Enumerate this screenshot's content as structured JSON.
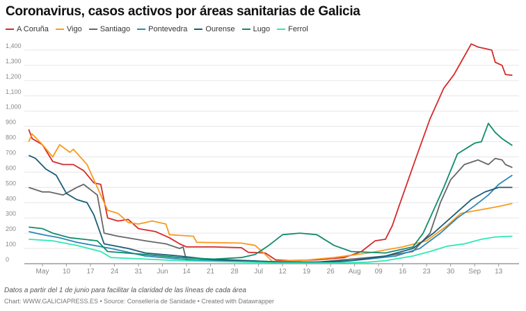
{
  "chart_data": {
    "type": "line",
    "title": "Coronavirus, casos activos por áreas sanitarias de Galicia",
    "xlabel": "",
    "ylabel": "",
    "x_unit": "days since May 3",
    "ylim": [
      0,
      1400
    ],
    "yticks": [
      0,
      100,
      200,
      300,
      400,
      500,
      600,
      700,
      800,
      900,
      1000,
      1100,
      1200,
      1300,
      1400
    ],
    "ytick_labels": [
      "0",
      "100",
      "200",
      "300",
      "400",
      "500",
      "600",
      "700",
      "800",
      "900",
      "1,000",
      "1,100",
      "1,200",
      "1,300",
      "1,400"
    ],
    "xlim": [
      -4.3,
      137
    ],
    "xticks": [
      {
        "day": 0,
        "label": "May"
      },
      {
        "day": 7,
        "label": "10"
      },
      {
        "day": 14,
        "label": "17"
      },
      {
        "day": 21,
        "label": "24"
      },
      {
        "day": 28,
        "label": "31"
      },
      {
        "day": 35,
        "label": "Jun"
      },
      {
        "day": 42,
        "label": "14"
      },
      {
        "day": 49,
        "label": "21"
      },
      {
        "day": 56,
        "label": "28"
      },
      {
        "day": 63,
        "label": "Jul"
      },
      {
        "day": 70,
        "label": "12"
      },
      {
        "day": 77,
        "label": "19"
      },
      {
        "day": 84,
        "label": "26"
      },
      {
        "day": 91,
        "label": "Aug"
      },
      {
        "day": 98,
        "label": "09"
      },
      {
        "day": 105,
        "label": "16"
      },
      {
        "day": 112,
        "label": "23"
      },
      {
        "day": 119,
        "label": "30"
      },
      {
        "day": 126,
        "label": "Sep"
      },
      {
        "day": 133,
        "label": "13"
      }
    ],
    "grid": true,
    "legend_position": "top-left",
    "series": [
      {
        "name": "A Coruña",
        "color": "#d52a2a",
        "points": [
          [
            -4,
            880
          ],
          [
            -3,
            820
          ],
          [
            0,
            780
          ],
          [
            3,
            670
          ],
          [
            6,
            650
          ],
          [
            9,
            650
          ],
          [
            12,
            610
          ],
          [
            15,
            530
          ],
          [
            17,
            520
          ],
          [
            19,
            300
          ],
          [
            22,
            280
          ],
          [
            25,
            290
          ],
          [
            28,
            230
          ],
          [
            33,
            210
          ],
          [
            37,
            170
          ],
          [
            40,
            130
          ],
          [
            42,
            110
          ],
          [
            50,
            110
          ],
          [
            58,
            105
          ],
          [
            60,
            75
          ],
          [
            65,
            70
          ],
          [
            67,
            40
          ],
          [
            68,
            25
          ],
          [
            72,
            20
          ],
          [
            80,
            25
          ],
          [
            88,
            40
          ],
          [
            93,
            80
          ],
          [
            97,
            150
          ],
          [
            100,
            160
          ],
          [
            102,
            250
          ],
          [
            104,
            380
          ],
          [
            109,
            700
          ],
          [
            113,
            950
          ],
          [
            117,
            1150
          ],
          [
            120,
            1240
          ],
          [
            122,
            1320
          ],
          [
            125,
            1440
          ],
          [
            127,
            1420
          ],
          [
            129,
            1410
          ],
          [
            131,
            1400
          ],
          [
            132,
            1320
          ],
          [
            134,
            1300
          ],
          [
            135,
            1240
          ],
          [
            137,
            1235
          ]
        ]
      },
      {
        "name": "Vigo",
        "color": "#f89a1e",
        "points": [
          [
            -4,
            800
          ],
          [
            -3,
            850
          ],
          [
            0,
            780
          ],
          [
            3,
            700
          ],
          [
            5,
            780
          ],
          [
            8,
            730
          ],
          [
            9,
            750
          ],
          [
            13,
            650
          ],
          [
            16,
            500
          ],
          [
            19,
            350
          ],
          [
            22,
            330
          ],
          [
            25,
            270
          ],
          [
            28,
            260
          ],
          [
            32,
            280
          ],
          [
            36,
            260
          ],
          [
            37,
            190
          ],
          [
            44,
            180
          ],
          [
            45,
            140
          ],
          [
            58,
            135
          ],
          [
            62,
            120
          ],
          [
            65,
            60
          ],
          [
            67,
            15
          ],
          [
            75,
            20
          ],
          [
            85,
            40
          ],
          [
            95,
            70
          ],
          [
            100,
            90
          ],
          [
            105,
            110
          ],
          [
            112,
            150
          ],
          [
            118,
            250
          ],
          [
            122,
            330
          ],
          [
            128,
            355
          ],
          [
            133,
            375
          ],
          [
            137,
            395
          ]
        ]
      },
      {
        "name": "Santiago",
        "color": "#666666",
        "points": [
          [
            -4,
            500
          ],
          [
            0,
            470
          ],
          [
            2,
            470
          ],
          [
            6,
            450
          ],
          [
            10,
            500
          ],
          [
            12,
            520
          ],
          [
            16,
            450
          ],
          [
            18,
            200
          ],
          [
            22,
            180
          ],
          [
            30,
            150
          ],
          [
            36,
            130
          ],
          [
            40,
            100
          ],
          [
            41,
            110
          ],
          [
            42,
            20
          ],
          [
            50,
            30
          ],
          [
            60,
            20
          ],
          [
            70,
            10
          ],
          [
            80,
            10
          ],
          [
            90,
            30
          ],
          [
            100,
            50
          ],
          [
            108,
            80
          ],
          [
            113,
            200
          ],
          [
            116,
            400
          ],
          [
            119,
            550
          ],
          [
            123,
            650
          ],
          [
            127,
            680
          ],
          [
            130,
            650
          ],
          [
            132,
            690
          ],
          [
            134,
            680
          ],
          [
            135,
            650
          ],
          [
            137,
            630
          ]
        ]
      },
      {
        "name": "Pontevedra",
        "color": "#2e86b5",
        "points": [
          [
            -4,
            210
          ],
          [
            0,
            190
          ],
          [
            5,
            170
          ],
          [
            10,
            140
          ],
          [
            20,
            100
          ],
          [
            30,
            50
          ],
          [
            40,
            30
          ],
          [
            50,
            20
          ],
          [
            60,
            15
          ],
          [
            70,
            10
          ],
          [
            85,
            10
          ],
          [
            95,
            30
          ],
          [
            103,
            50
          ],
          [
            110,
            100
          ],
          [
            116,
            200
          ],
          [
            121,
            300
          ],
          [
            126,
            380
          ],
          [
            130,
            450
          ],
          [
            133,
            520
          ],
          [
            137,
            580
          ]
        ]
      },
      {
        "name": "Ourense",
        "color": "#1a5d75",
        "points": [
          [
            -4,
            710
          ],
          [
            -2,
            690
          ],
          [
            1,
            620
          ],
          [
            4,
            580
          ],
          [
            7,
            460
          ],
          [
            10,
            420
          ],
          [
            13,
            400
          ],
          [
            15,
            320
          ],
          [
            18,
            130
          ],
          [
            25,
            100
          ],
          [
            30,
            70
          ],
          [
            40,
            50
          ],
          [
            50,
            25
          ],
          [
            60,
            20
          ],
          [
            70,
            10
          ],
          [
            80,
            10
          ],
          [
            90,
            20
          ],
          [
            100,
            50
          ],
          [
            108,
            100
          ],
          [
            114,
            200
          ],
          [
            118,
            280
          ],
          [
            121,
            340
          ],
          [
            125,
            420
          ],
          [
            129,
            470
          ],
          [
            133,
            500
          ],
          [
            137,
            500
          ]
        ]
      },
      {
        "name": "Lugo",
        "color": "#0f8c6c",
        "points": [
          [
            -4,
            240
          ],
          [
            0,
            230
          ],
          [
            3,
            200
          ],
          [
            8,
            170
          ],
          [
            16,
            150
          ],
          [
            19,
            80
          ],
          [
            30,
            60
          ],
          [
            40,
            40
          ],
          [
            50,
            30
          ],
          [
            58,
            40
          ],
          [
            62,
            60
          ],
          [
            66,
            120
          ],
          [
            70,
            190
          ],
          [
            75,
            200
          ],
          [
            80,
            190
          ],
          [
            85,
            120
          ],
          [
            90,
            80
          ],
          [
            100,
            70
          ],
          [
            108,
            110
          ],
          [
            111,
            200
          ],
          [
            113,
            300
          ],
          [
            117,
            500
          ],
          [
            121,
            720
          ],
          [
            126,
            790
          ],
          [
            128,
            800
          ],
          [
            130,
            920
          ],
          [
            132,
            860
          ],
          [
            134,
            820
          ],
          [
            137,
            775
          ]
        ]
      },
      {
        "name": "Ferrol",
        "color": "#2ee8b5",
        "points": [
          [
            -4,
            160
          ],
          [
            3,
            150
          ],
          [
            10,
            120
          ],
          [
            17,
            80
          ],
          [
            20,
            40
          ],
          [
            30,
            30
          ],
          [
            40,
            20
          ],
          [
            50,
            15
          ],
          [
            60,
            10
          ],
          [
            70,
            5
          ],
          [
            85,
            5
          ],
          [
            95,
            10
          ],
          [
            100,
            20
          ],
          [
            108,
            50
          ],
          [
            113,
            80
          ],
          [
            118,
            115
          ],
          [
            123,
            130
          ],
          [
            128,
            160
          ],
          [
            132,
            175
          ],
          [
            137,
            180
          ]
        ]
      }
    ],
    "note": "Datos a partir del 1 de junio para facilitar la claridad de las líneas de cada área",
    "credit": "Chart: WWW.GALICIAPRESS.ES • Source: Consellería de Sanidade • Created with Datawrapper"
  }
}
